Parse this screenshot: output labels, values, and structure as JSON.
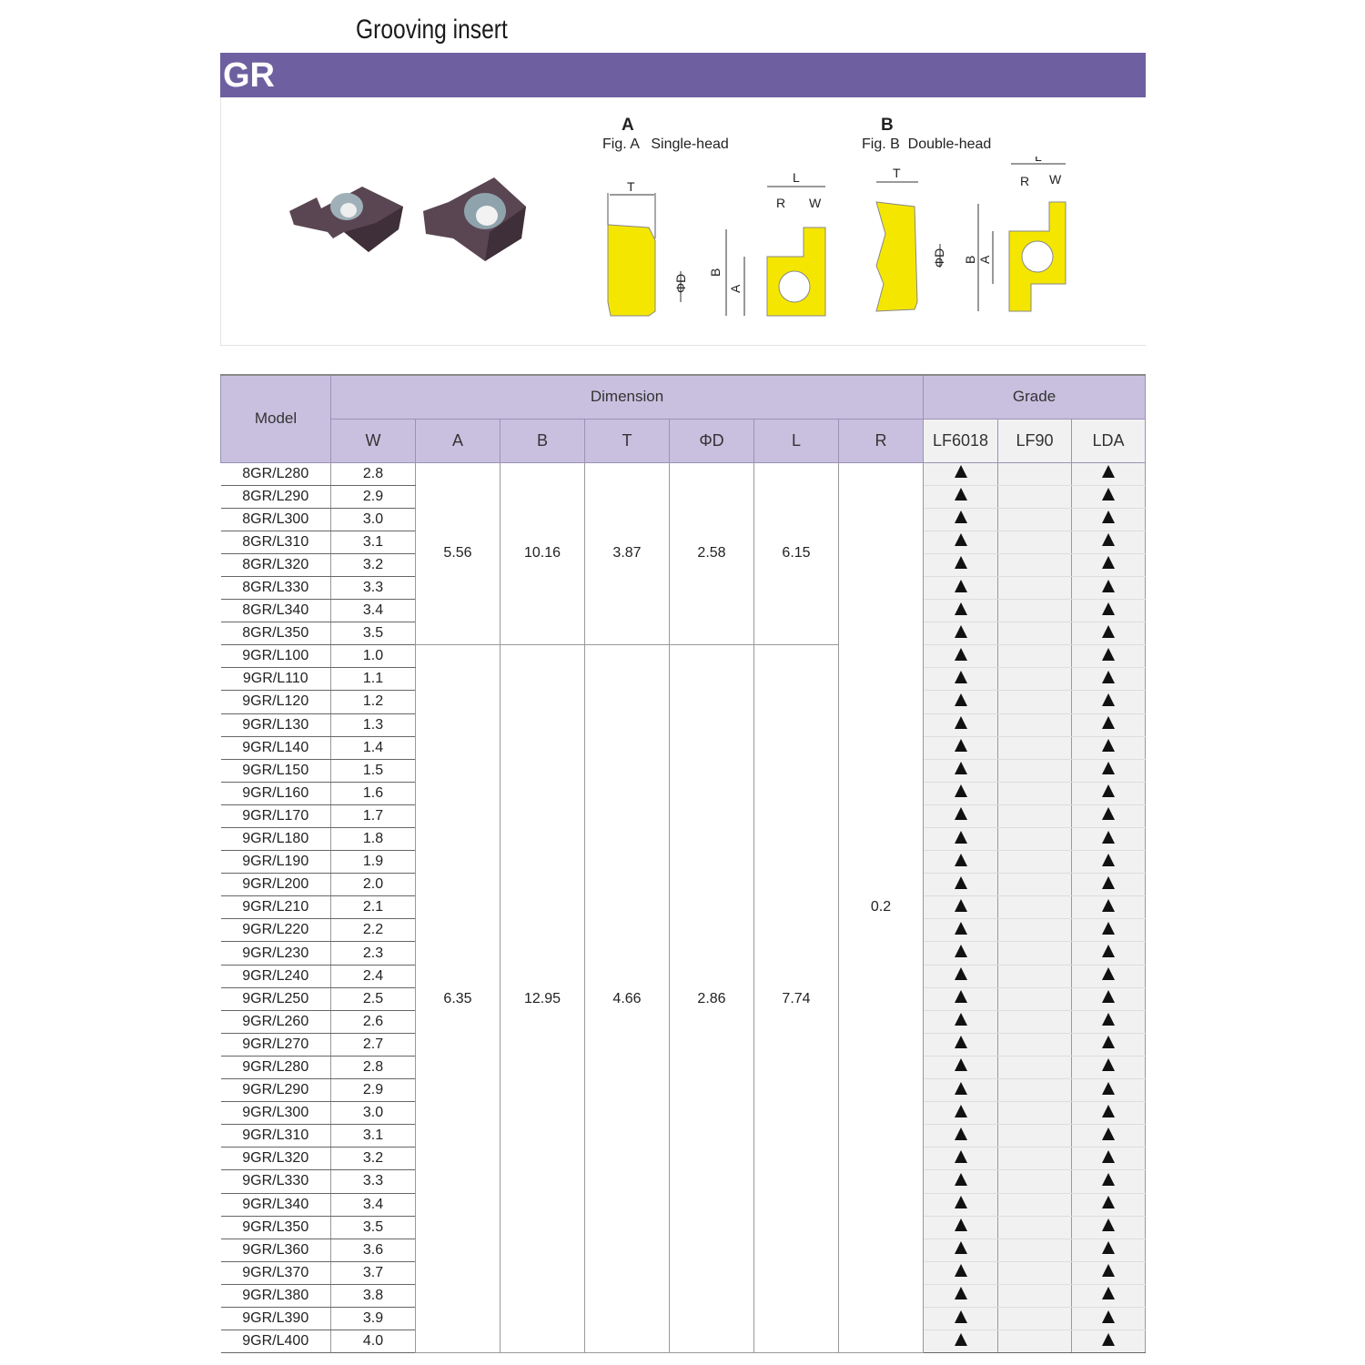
{
  "title": "Grooving insert",
  "banner": "GR",
  "figures": {
    "a": {
      "letter": "A",
      "caption": "Fig. A   Single-head"
    },
    "b": {
      "letter": "B",
      "caption": "Fig. B  Double-head"
    },
    "dims": {
      "T": "T",
      "L": "L",
      "R": "R",
      "W": "W",
      "A": "A",
      "B": "B",
      "D": "ΦD"
    }
  },
  "colors": {
    "banner": "#6e60a0",
    "header": "#c9c0df",
    "insert": "#f5e600"
  },
  "table": {
    "headers": {
      "model": "Model",
      "dimension": "Dimension",
      "grade": "Grade",
      "cols": [
        "W",
        "A",
        "B",
        "T",
        "ΦD",
        "L",
        "R"
      ],
      "grades": [
        "LF6018",
        "LF90",
        "LDA"
      ]
    },
    "groups": [
      {
        "A": "5.56",
        "B": "10.16",
        "T": "3.87",
        "D": "2.58",
        "L": "6.15",
        "rows": [
          [
            "8GR/L280",
            "2.8"
          ],
          [
            "8GR/L290",
            "2.9"
          ],
          [
            "8GR/L300",
            "3.0"
          ],
          [
            "8GR/L310",
            "3.1"
          ],
          [
            "8GR/L320",
            "3.2"
          ],
          [
            "8GR/L330",
            "3.3"
          ],
          [
            "8GR/L340",
            "3.4"
          ],
          [
            "8GR/L350",
            "3.5"
          ]
        ]
      },
      {
        "A": "6.35",
        "B": "12.95",
        "T": "4.66",
        "D": "2.86",
        "L": "7.74",
        "rows": [
          [
            "9GR/L100",
            "1.0"
          ],
          [
            "9GR/L110",
            "1.1"
          ],
          [
            "9GR/L120",
            "1.2"
          ],
          [
            "9GR/L130",
            "1.3"
          ],
          [
            "9GR/L140",
            "1.4"
          ],
          [
            "9GR/L150",
            "1.5"
          ],
          [
            "9GR/L160",
            "1.6"
          ],
          [
            "9GR/L170",
            "1.7"
          ],
          [
            "9GR/L180",
            "1.8"
          ],
          [
            "9GR/L190",
            "1.9"
          ],
          [
            "9GR/L200",
            "2.0"
          ],
          [
            "9GR/L210",
            "2.1"
          ],
          [
            "9GR/L220",
            "2.2"
          ],
          [
            "9GR/L230",
            "2.3"
          ],
          [
            "9GR/L240",
            "2.4"
          ],
          [
            "9GR/L250",
            "2.5"
          ],
          [
            "9GR/L260",
            "2.6"
          ],
          [
            "9GR/L270",
            "2.7"
          ],
          [
            "9GR/L280",
            "2.8"
          ],
          [
            "9GR/L290",
            "2.9"
          ],
          [
            "9GR/L300",
            "3.0"
          ],
          [
            "9GR/L310",
            "3.1"
          ],
          [
            "9GR/L320",
            "3.2"
          ],
          [
            "9GR/L330",
            "3.3"
          ],
          [
            "9GR/L340",
            "3.4"
          ],
          [
            "9GR/L350",
            "3.5"
          ],
          [
            "9GR/L360",
            "3.6"
          ],
          [
            "9GR/L370",
            "3.7"
          ],
          [
            "9GR/L380",
            "3.8"
          ],
          [
            "9GR/L390",
            "3.9"
          ],
          [
            "9GR/L400",
            "4.0"
          ]
        ]
      }
    ],
    "R": "0.2",
    "grade_marks": {
      "LF6018": true,
      "LF90": false,
      "LDA": true
    },
    "mark_icon": "filled-triangle"
  }
}
